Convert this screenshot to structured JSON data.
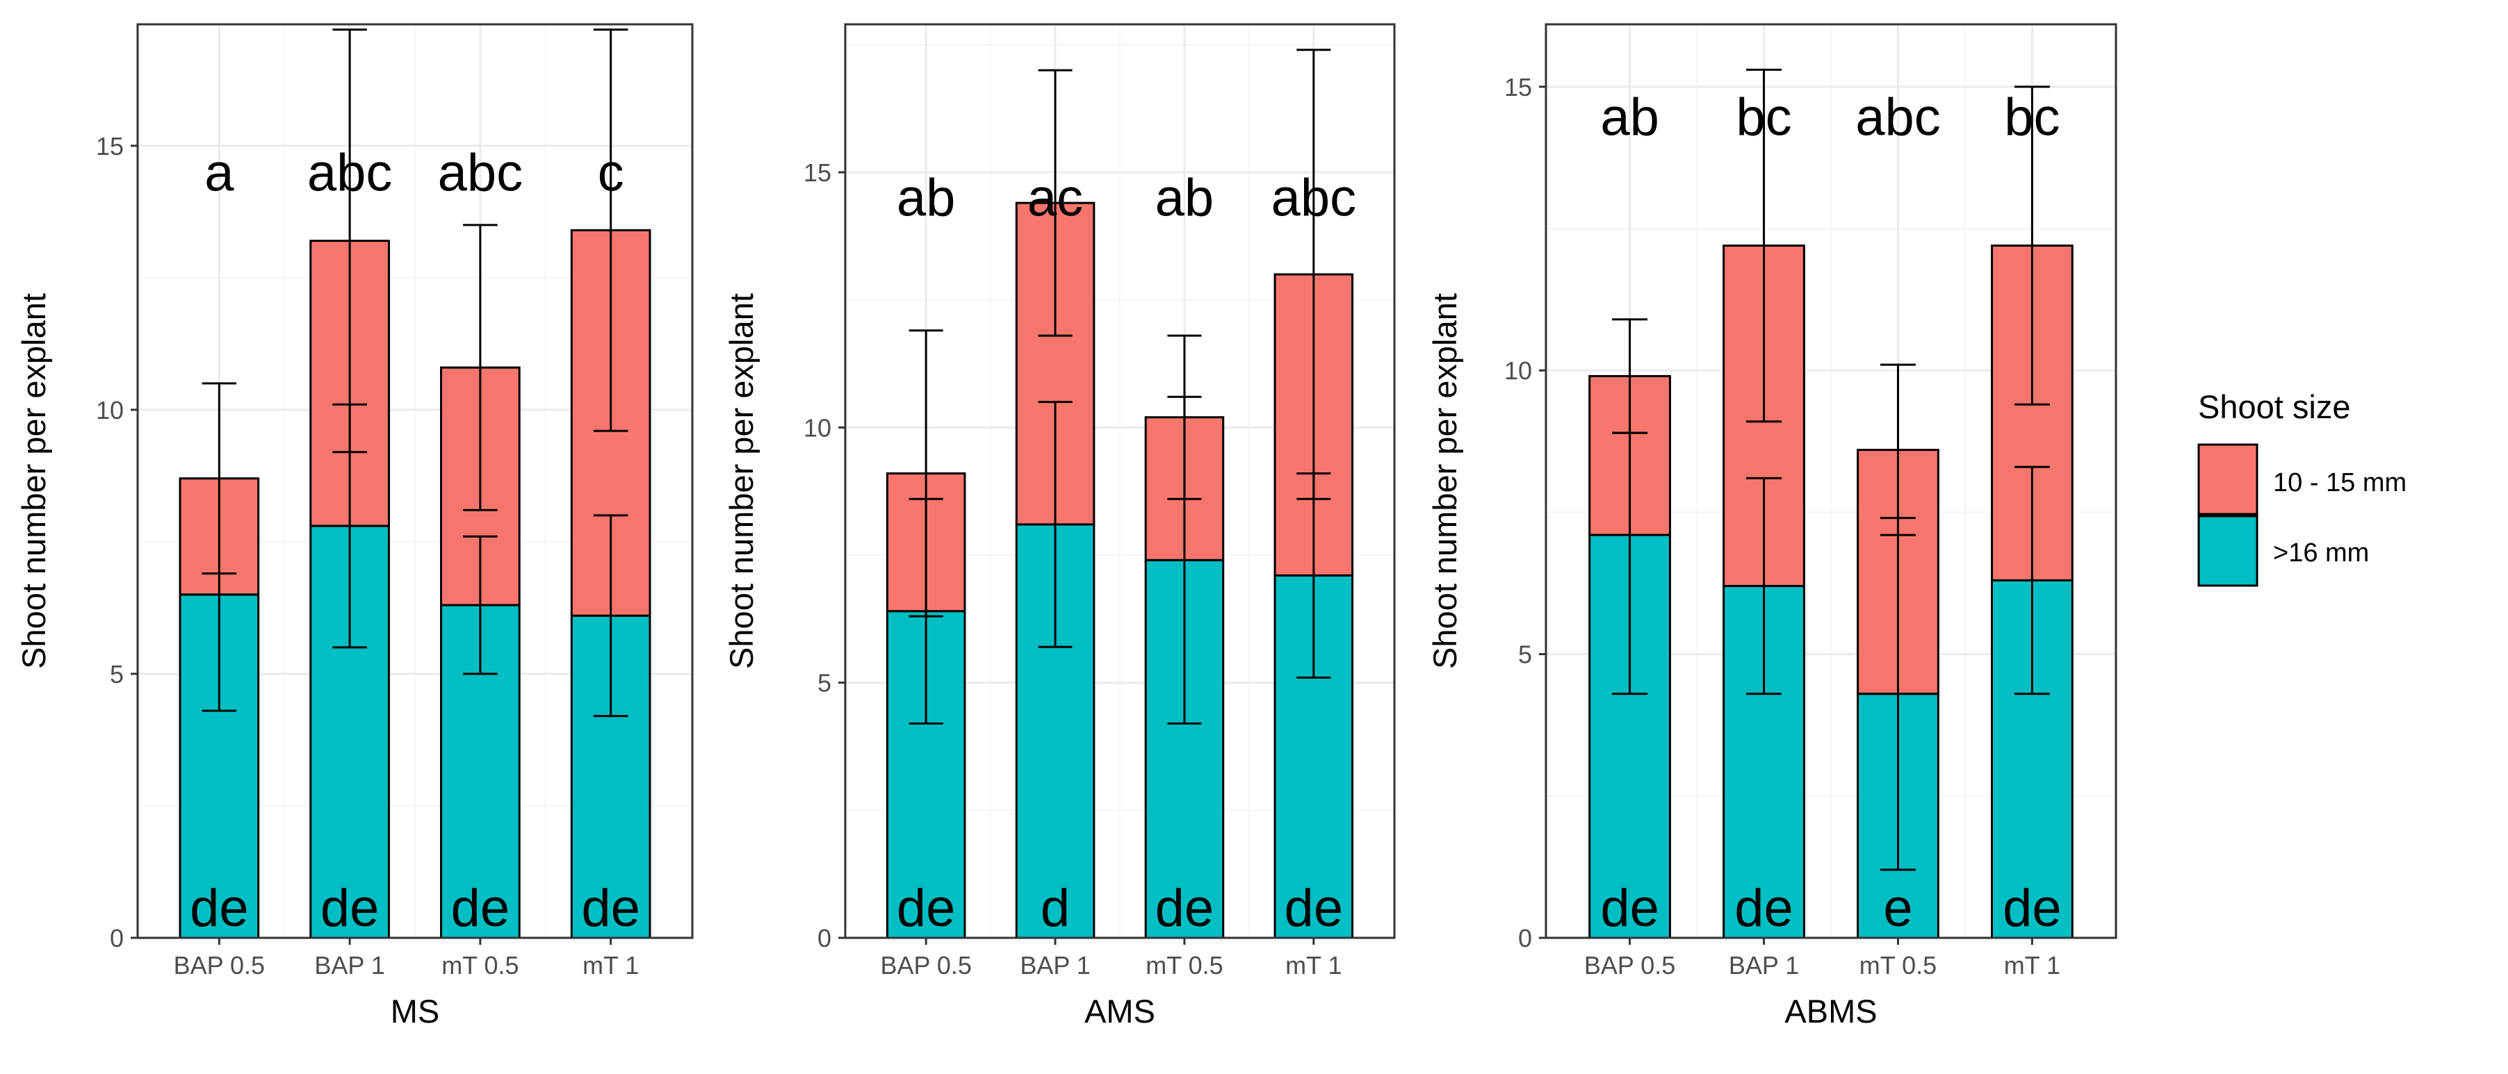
{
  "chart_data": [
    {
      "type": "bar",
      "stacked": true,
      "xlabel": "MS",
      "ylabel": "Shoot number per explant",
      "ylim": [
        0,
        17.3
      ],
      "yticks": [
        0,
        5,
        10,
        15
      ],
      "categories": [
        "BAP 0.5",
        "BAP 1",
        "mT 0.5",
        "mT 1"
      ],
      "series": [
        {
          "name": ">16 mm",
          "values": [
            6.5,
            7.8,
            6.3,
            6.1
          ],
          "err_low": [
            4.3,
            5.5,
            5.0,
            4.2
          ],
          "err_high": [
            6.9,
            10.1,
            7.6,
            8.0
          ]
        },
        {
          "name": "10 - 15 mm",
          "values": [
            2.2,
            5.4,
            4.5,
            7.3
          ],
          "err_low": [
            6.9,
            9.2,
            8.1,
            9.6
          ],
          "err_high": [
            10.5,
            17.2,
            13.5,
            17.2
          ]
        }
      ],
      "top_letters": [
        "a",
        "abc",
        "abc",
        "c"
      ],
      "bottom_letters": [
        "de",
        "de",
        "de",
        "de"
      ]
    },
    {
      "type": "bar",
      "stacked": true,
      "xlabel": "AMS",
      "ylabel": "Shoot number per explant",
      "ylim": [
        0,
        17.9
      ],
      "yticks": [
        0,
        5,
        10,
        15
      ],
      "categories": [
        "BAP 0.5",
        "BAP 1",
        "mT 0.5",
        "mT 1"
      ],
      "series": [
        {
          "name": ">16 mm",
          "values": [
            6.4,
            8.1,
            7.4,
            7.1
          ],
          "err_low": [
            4.2,
            5.7,
            4.2,
            5.1
          ],
          "err_high": [
            8.6,
            10.5,
            10.6,
            9.1
          ]
        },
        {
          "name": "10 - 15 mm",
          "values": [
            2.7,
            6.3,
            2.8,
            5.9
          ],
          "err_low": [
            6.3,
            11.8,
            8.6,
            8.6
          ],
          "err_high": [
            11.9,
            17.0,
            11.8,
            17.4
          ]
        }
      ],
      "top_letters": [
        "ab",
        "ac",
        "ab",
        "abc"
      ],
      "bottom_letters": [
        "de",
        "d",
        "de",
        "de"
      ]
    },
    {
      "type": "bar",
      "stacked": true,
      "xlabel": "ABMS",
      "ylabel": "Shoot number per explant",
      "ylim": [
        0,
        16.1
      ],
      "yticks": [
        0,
        5,
        10,
        15
      ],
      "categories": [
        "BAP 0.5",
        "BAP 1",
        "mT 0.5",
        "mT 1"
      ],
      "series": [
        {
          "name": ">16 mm",
          "values": [
            7.1,
            6.2,
            4.3,
            6.3
          ],
          "err_low": [
            4.3,
            4.3,
            1.2,
            4.3
          ],
          "err_high": [
            8.9,
            8.1,
            7.4,
            8.3
          ]
        },
        {
          "name": "10 - 15 mm",
          "values": [
            2.8,
            6.0,
            4.3,
            5.9
          ],
          "err_low": [
            8.9,
            9.1,
            7.1,
            9.4
          ],
          "err_high": [
            10.9,
            15.3,
            10.1,
            15.0
          ]
        }
      ],
      "top_letters": [
        "ab",
        "bc",
        "abc",
        "bc"
      ],
      "bottom_letters": [
        "de",
        "de",
        "e",
        "de"
      ]
    }
  ],
  "legend": {
    "title": "Shoot size",
    "items": [
      {
        "label": "10 - 15 mm",
        "color": "#F8766D"
      },
      {
        "label": ">16 mm",
        "color": "#00BFC4"
      }
    ]
  },
  "colors": {
    "bottom": "#00BFC4",
    "top": "#F8766D",
    "panel_border": "#333333",
    "grid_major": "#EBEBEB",
    "grid_minor": "#F5F5F5"
  }
}
